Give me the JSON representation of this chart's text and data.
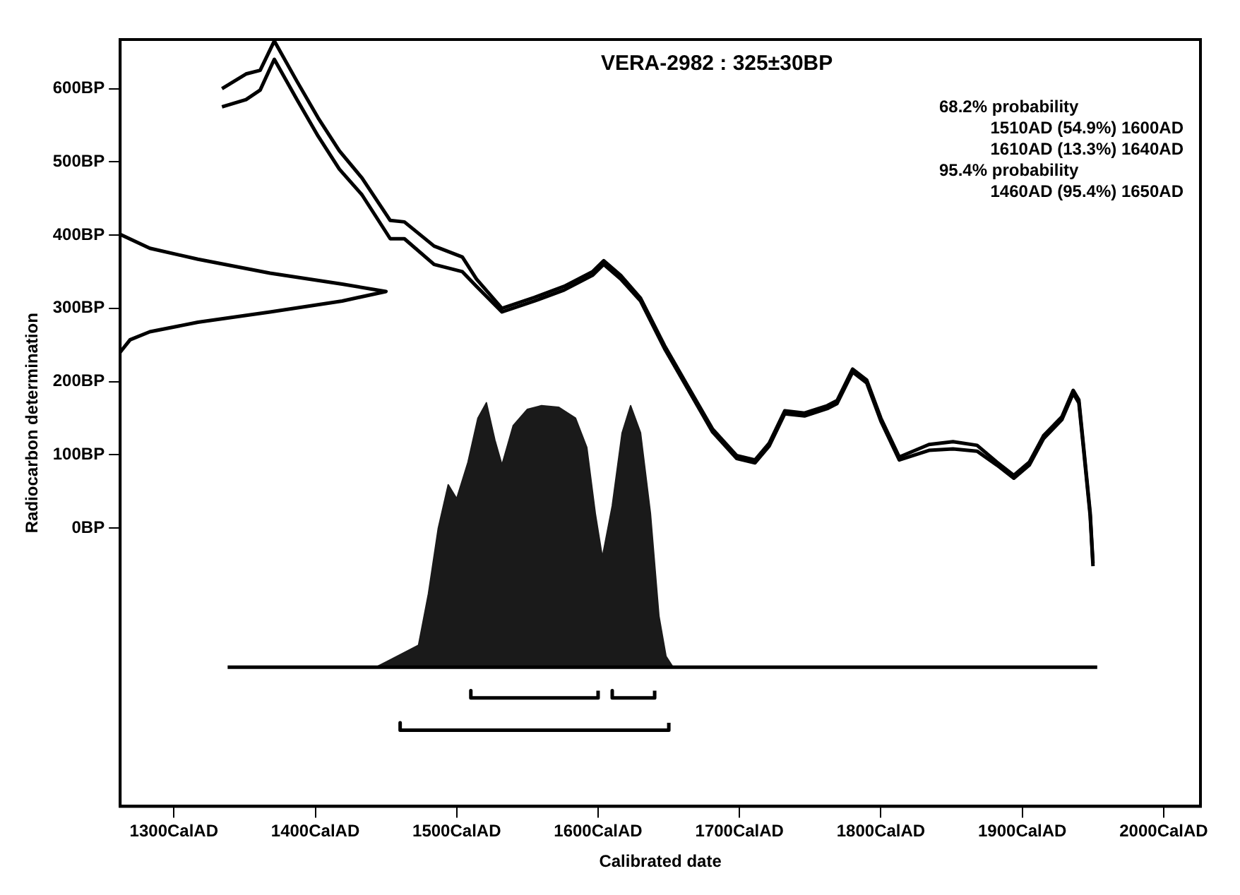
{
  "chart_data": {
    "type": "line",
    "title": "VERA-2982 : 325±30BP",
    "xlabel": "Calibrated date",
    "ylabel": "Radiocarbon determination",
    "xlim": [
      1262,
      2026
    ],
    "ylim": [
      -380,
      667
    ],
    "xticks": [
      {
        "value": 1300,
        "label": "1300CalAD"
      },
      {
        "value": 1400,
        "label": "1400CalAD"
      },
      {
        "value": 1500,
        "label": "1500CalAD"
      },
      {
        "value": 1600,
        "label": "1600CalAD"
      },
      {
        "value": 1700,
        "label": "1700CalAD"
      },
      {
        "value": 1800,
        "label": "1800CalAD"
      },
      {
        "value": 1900,
        "label": "1900CalAD"
      },
      {
        "value": 2000,
        "label": "2000CalAD"
      }
    ],
    "yticks": [
      {
        "value": 0,
        "label": "0BP"
      },
      {
        "value": 100,
        "label": "100BP"
      },
      {
        "value": 200,
        "label": "200BP"
      },
      {
        "value": 300,
        "label": "300BP"
      },
      {
        "value": 400,
        "label": "400BP"
      },
      {
        "value": 500,
        "label": "500BP"
      },
      {
        "value": 600,
        "label": "600BP"
      }
    ],
    "annotations": [
      "68.2% probability",
      "1510AD (54.9%) 1600AD",
      "1610AD (13.3%) 1640AD",
      "95.4% probability",
      "1460AD (95.4%) 1650AD"
    ],
    "grid": false,
    "legend": false,
    "marker": "none",
    "line_style": "solid",
    "series": [
      {
        "type": "line",
        "color": "#000000",
        "x": [
          1334,
          1351,
          1361,
          1371,
          1387,
          1402,
          1417,
          1433,
          1453,
          1463,
          1484,
          1504,
          1514,
          1532,
          1555,
          1576,
          1596,
          1604,
          1616,
          1630,
          1647,
          1664,
          1681,
          1698,
          1711,
          1721,
          1732,
          1746,
          1762,
          1769,
          1780,
          1790,
          1800,
          1813,
          1834,
          1851,
          1868,
          1882,
          1894,
          1905,
          1915,
          1928,
          1936,
          1940,
          1943,
          1948,
          1950
        ],
        "values": [
          600,
          620,
          625,
          665,
          610,
          560,
          515,
          478,
          420,
          418,
          385,
          370,
          340,
          300,
          315,
          330,
          350,
          365,
          345,
          314,
          249,
          192,
          135,
          99,
          93,
          116,
          160,
          157,
          167,
          174,
          217,
          202,
          150,
          97,
          114,
          118,
          113,
          90,
          72,
          90,
          126,
          152,
          188,
          175,
          118,
          21,
          -48
        ]
      },
      {
        "type": "line",
        "color": "#000000",
        "x": [
          1334,
          1351,
          1361,
          1371,
          1387,
          1402,
          1417,
          1433,
          1453,
          1463,
          1484,
          1504,
          1514,
          1532,
          1555,
          1576,
          1596,
          1604,
          1616,
          1630,
          1647,
          1664,
          1681,
          1698,
          1711,
          1721,
          1732,
          1746,
          1762,
          1769,
          1780,
          1790,
          1800,
          1813,
          1834,
          1851,
          1868,
          1882,
          1894,
          1905,
          1915,
          1928,
          1936,
          1940,
          1943,
          1948,
          1950
        ],
        "values": [
          575,
          585,
          598,
          640,
          585,
          535,
          490,
          455,
          395,
          395,
          360,
          350,
          330,
          295,
          310,
          325,
          345,
          360,
          340,
          310,
          245,
          188,
          131,
          95,
          89,
          112,
          156,
          153,
          163,
          170,
          213,
          198,
          146,
          93,
          106,
          108,
          105,
          86,
          68,
          86,
          122,
          148,
          184,
          171,
          114,
          17,
          -52
        ]
      },
      {
        "type": "line",
        "color": "#000000",
        "x": [
          1262,
          1283,
          1317,
          1368,
          1419,
          1450,
          1419,
          1368,
          1317,
          1283,
          1269,
          1262
        ],
        "values": [
          401,
          382,
          367,
          348,
          333,
          323,
          310,
          295,
          281,
          268,
          257,
          240
        ]
      },
      {
        "type": "line",
        "color": "#000000",
        "x": [
          1338,
          1953
        ],
        "values": [
          -190,
          -190
        ]
      },
      {
        "type": "area",
        "color": "#1a1a1a",
        "x": [
          1443,
          1453,
          1473,
          1480,
          1487,
          1494,
          1500,
          1508,
          1515,
          1521,
          1527,
          1532,
          1540,
          1550,
          1560,
          1572,
          1584,
          1592,
          1598,
          1603,
          1610,
          1617,
          1623,
          1630,
          1637,
          1643,
          1648,
          1653
        ],
        "values": [
          -190,
          -180,
          -160,
          -90,
          0,
          59,
          40,
          90,
          150,
          171,
          120,
          86,
          140,
          162,
          167,
          165,
          150,
          110,
          20,
          -40,
          30,
          130,
          167,
          130,
          20,
          -120,
          -175,
          -190
        ]
      },
      {
        "type": "line",
        "color": "#000000",
        "x": [
          1510,
          1510,
          1600,
          1600
        ],
        "values": [
          -222,
          -232,
          -232,
          -222
        ]
      },
      {
        "type": "line",
        "color": "#000000",
        "x": [
          1610,
          1610,
          1640,
          1640
        ],
        "values": [
          -222,
          -232,
          -232,
          -222
        ]
      },
      {
        "type": "line",
        "color": "#000000",
        "x": [
          1460,
          1460,
          1650,
          1650
        ],
        "values": [
          -266,
          -276,
          -276,
          -266
        ]
      }
    ]
  }
}
